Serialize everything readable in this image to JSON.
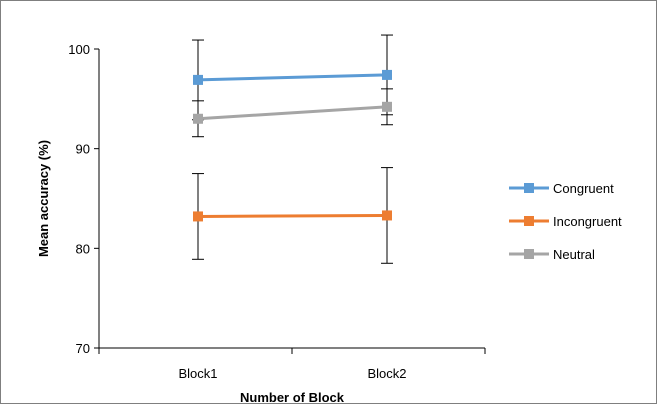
{
  "chart_data": {
    "type": "line",
    "title": "",
    "xlabel": "Number of Block",
    "ylabel": "Mean accuracy  (%)",
    "categories": [
      "Block1",
      "Block2"
    ],
    "ylim": [
      70,
      100
    ],
    "yticks": [
      70,
      80,
      90,
      100
    ],
    "grid": false,
    "legend_position": "right",
    "series": [
      {
        "name": "Congruent",
        "color": "#5b9bd5",
        "values": [
          96.9,
          97.4
        ],
        "error_low": [
          92.9,
          93.4
        ],
        "error_high": [
          100.9,
          101.4
        ]
      },
      {
        "name": "Incongruent",
        "color": "#ed7d31",
        "values": [
          83.2,
          83.3
        ],
        "error_low": [
          78.9,
          78.5
        ],
        "error_high": [
          87.5,
          88.1
        ]
      },
      {
        "name": "Neutral",
        "color": "#a5a5a5",
        "values": [
          93.0,
          94.2
        ],
        "error_low": [
          91.2,
          92.4
        ],
        "error_high": [
          94.8,
          96.0
        ]
      }
    ]
  }
}
